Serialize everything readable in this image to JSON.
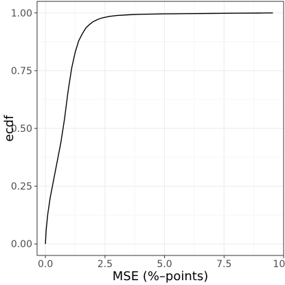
{
  "chart_data": {
    "type": "line",
    "title": "",
    "xlabel": "MSE (%–points)",
    "ylabel": "ecdf",
    "xlim": [
      -0.35,
      10.0
    ],
    "ylim": [
      -0.05,
      1.05
    ],
    "x_ticks": [
      0.0,
      2.5,
      5.0,
      7.5,
      10.0
    ],
    "x_tick_labels": [
      "0.0",
      "2.5",
      "5.0",
      "7.5",
      "10.0"
    ],
    "y_ticks": [
      0.0,
      0.25,
      0.5,
      0.75,
      1.0
    ],
    "y_tick_labels": [
      "0.00",
      "0.25",
      "0.50",
      "0.75",
      "1.00"
    ],
    "grid": true,
    "series": [
      {
        "x": [
          0.0,
          0.03,
          0.1,
          0.2,
          0.35,
          0.5,
          0.65,
          0.8,
          0.95,
          1.1,
          1.25,
          1.4,
          1.55,
          1.7,
          1.85,
          2.0,
          2.2,
          2.4,
          2.7,
          3.0,
          3.5,
          4.0,
          5.0,
          6.0,
          7.0,
          8.0,
          9.0,
          9.55
        ],
        "y": [
          0.0,
          0.06,
          0.13,
          0.2,
          0.28,
          0.36,
          0.44,
          0.54,
          0.66,
          0.76,
          0.83,
          0.88,
          0.91,
          0.935,
          0.95,
          0.962,
          0.972,
          0.979,
          0.985,
          0.989,
          0.992,
          0.994,
          0.996,
          0.997,
          0.998,
          0.999,
          0.9995,
          1.0
        ]
      }
    ]
  }
}
